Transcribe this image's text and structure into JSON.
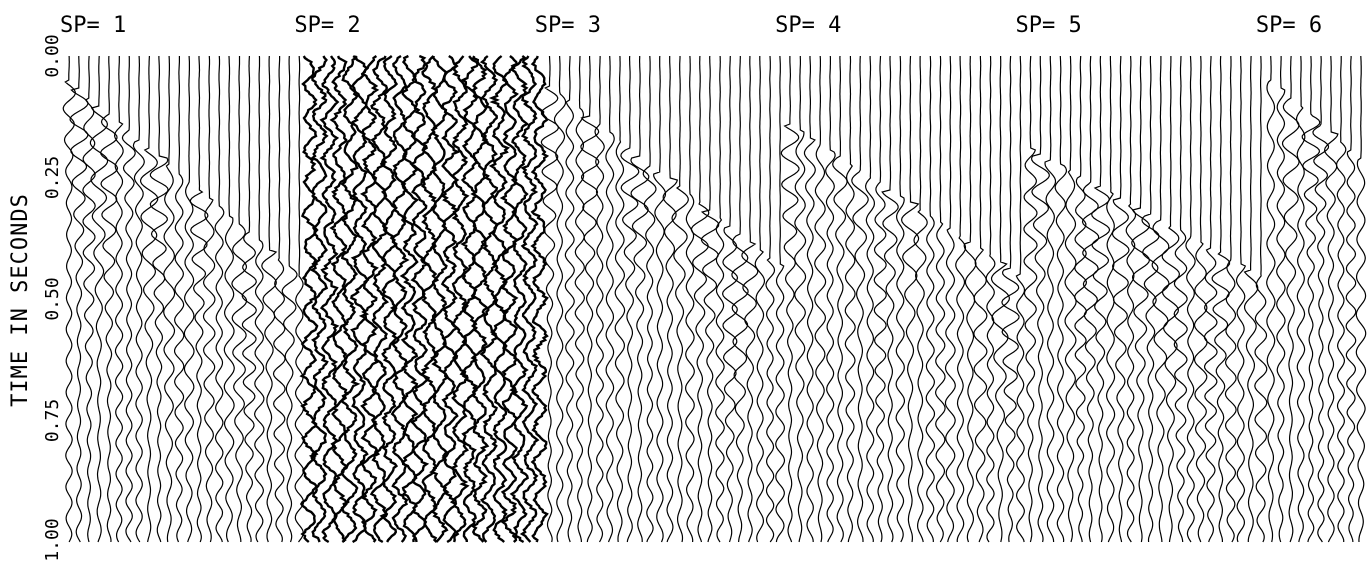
{
  "chart_data": {
    "type": "seismic-record",
    "ylabel": "TIME IN SECONDS",
    "ylim": [
      0,
      1.0
    ],
    "y_ticks": [
      {
        "value": 0.0,
        "label": "0.00"
      },
      {
        "value": 0.25,
        "label": "0.25"
      },
      {
        "value": 0.5,
        "label": "0.50"
      },
      {
        "value": 0.75,
        "label": "0.75"
      },
      {
        "value": 1.0,
        "label": "1.00"
      }
    ],
    "shot_points": [
      {
        "label": "SP= 1",
        "first_arrival_start_s": 0.06,
        "first_arrival_end_s": 0.46,
        "traces": 24
      },
      {
        "label": "SP= 2",
        "first_arrival_start_s": 0.05,
        "first_arrival_end_s": 0.1,
        "traces": 24,
        "noisy": true
      },
      {
        "label": "SP= 3",
        "first_arrival_start_s": 0.07,
        "first_arrival_end_s": 0.44,
        "traces": 24
      },
      {
        "label": "SP= 4",
        "first_arrival_start_s": 0.15,
        "first_arrival_end_s": 0.46,
        "traces": 24
      },
      {
        "label": "SP= 5",
        "first_arrival_start_s": 0.2,
        "first_arrival_end_s": 0.46,
        "traces": 24
      },
      {
        "label": "SP= 6",
        "first_arrival_start_s": 0.06,
        "first_arrival_end_s": 0.22,
        "traces": 10
      }
    ],
    "grid": false
  }
}
